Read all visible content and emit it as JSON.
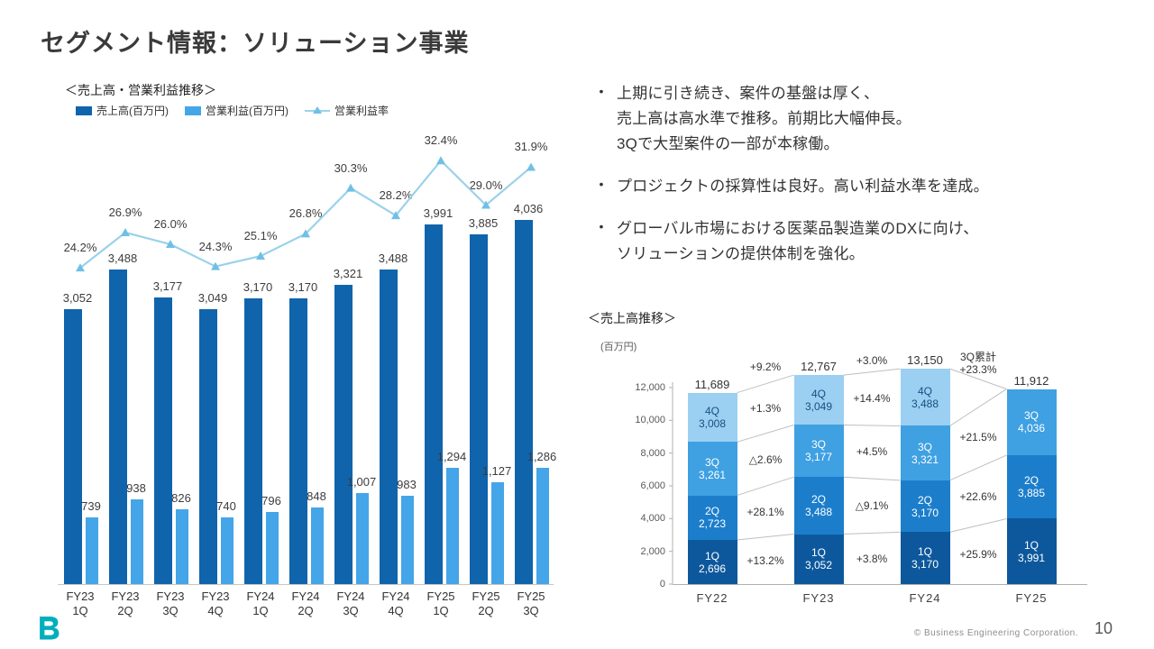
{
  "slide": {
    "title": "セグメント情報：ソリューション事業",
    "page_number": "10",
    "copyright": "© Business Engineering Corporation."
  },
  "bullets": {
    "marker": "•",
    "items": [
      {
        "lines": [
          "上期に引き続き、案件の基盤は厚く、",
          "売上高は高水準で推移。前期比大幅伸長。",
          "3Qで大型案件の一部が本稼働。"
        ]
      },
      {
        "lines": [
          "プロジェクトの採算性は良好。高い利益水準を達成。"
        ]
      },
      {
        "lines": [
          "グローバル市場における医薬品製造業のDXに向け、",
          "ソリューションの提供体制を強化。"
        ]
      }
    ]
  },
  "colors": {
    "sales_bar": "#1064ac",
    "profit_bar": "#44a5e8",
    "line": "#9ad2ea",
    "line_marker": "#6fc0e4",
    "q1": "#0d589c",
    "q2": "#1c7ecb",
    "q3": "#3fa0e2",
    "q4": "#9bd0f2",
    "q4_text": "#17507f",
    "logo": "#00aebc",
    "axis": "#b0b0b0",
    "connector": "#bfbfbf"
  },
  "chart_data": [
    {
      "id": "sales-operating-profit-trend",
      "type": "bar",
      "title": "＜売上高・営業利益推移＞",
      "legend": [
        "売上高(百万円)",
        "営業利益(百万円)",
        "営業利益率"
      ],
      "legend_position": "top",
      "grid": false,
      "categories": [
        "FY23 1Q",
        "FY23 2Q",
        "FY23 3Q",
        "FY23 4Q",
        "FY24 1Q",
        "FY24 2Q",
        "FY24 3Q",
        "FY24 4Q",
        "FY25 1Q",
        "FY25 2Q",
        "FY25 3Q"
      ],
      "series": [
        {
          "name": "売上高(百万円)",
          "type": "bar",
          "values": [
            3052,
            3488,
            3177,
            3049,
            3170,
            3170,
            3321,
            3488,
            3991,
            3885,
            4036
          ]
        },
        {
          "name": "営業利益(百万円)",
          "type": "bar",
          "values": [
            739,
            938,
            826,
            740,
            796,
            848,
            1007,
            983,
            1294,
            1127,
            1286
          ]
        },
        {
          "name": "営業利益率",
          "type": "line",
          "unit": "%",
          "values": [
            24.2,
            26.9,
            26.0,
            24.3,
            25.1,
            26.8,
            30.3,
            28.2,
            32.4,
            29.0,
            31.9
          ]
        }
      ]
    },
    {
      "id": "quarterly-sales-stacked",
      "type": "stacked-bar",
      "title": "＜売上高推移＞",
      "ylabel": "(百万円)",
      "y_ticks": [
        0,
        2000,
        4000,
        6000,
        8000,
        10000,
        12000
      ],
      "ylim": [
        0,
        13500
      ],
      "categories": [
        "FY22",
        "FY23",
        "FY24",
        "FY25"
      ],
      "series": [
        {
          "name": "1Q",
          "values": [
            2696,
            3052,
            3170,
            3991
          ]
        },
        {
          "name": "2Q",
          "values": [
            2723,
            3488,
            3170,
            3885
          ]
        },
        {
          "name": "3Q",
          "values": [
            3261,
            3177,
            3321,
            4036
          ]
        },
        {
          "name": "4Q",
          "values": [
            3008,
            3049,
            3488,
            null
          ]
        }
      ],
      "totals": [
        11689,
        12767,
        13150,
        11912
      ],
      "growth_annotations": [
        {
          "pair": [
            0,
            1
          ],
          "total": "+9.2%",
          "segments": {
            "1Q": "+13.2%",
            "2Q": "+28.1%",
            "3Q": "△2.6%",
            "4Q": "+1.3%"
          }
        },
        {
          "pair": [
            1,
            2
          ],
          "total": "+3.0%",
          "segments": {
            "1Q": "+3.8%",
            "2Q": "△9.1%",
            "3Q": "+4.5%",
            "4Q": "+14.4%"
          }
        },
        {
          "pair": [
            2,
            3
          ],
          "total_lines": [
            "3Q累計",
            "+23.3%"
          ],
          "segments": {
            "1Q": "+25.9%",
            "2Q": "+22.6%",
            "3Q": "+21.5%"
          }
        }
      ]
    }
  ]
}
